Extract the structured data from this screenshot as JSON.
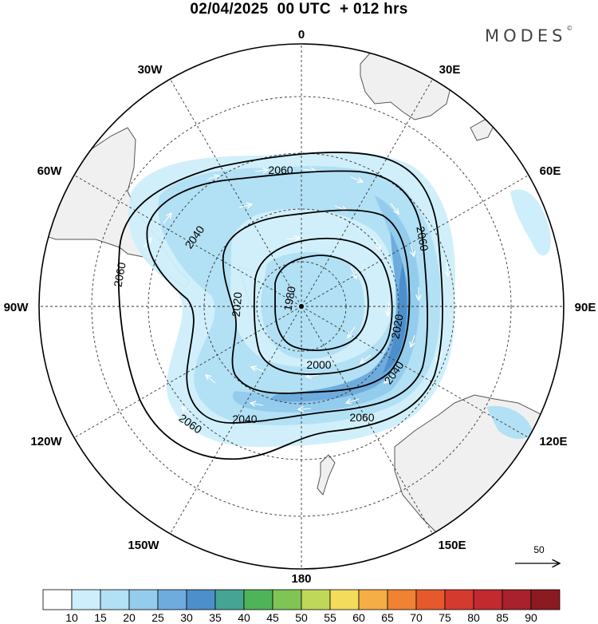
{
  "header": {
    "title": "02/04/2025  00 UTC  + 012 hrs",
    "brand": "MODES"
  },
  "map": {
    "projection": "south-polar-stereographic",
    "longitude_labels": [
      "0",
      "30E",
      "60E",
      "90E",
      "120E",
      "150E",
      "180",
      "150W",
      "120W",
      "90W",
      "60W",
      "30W"
    ],
    "contour_labels": [
      "2060",
      "2040",
      "2060",
      "2060",
      "2020",
      "1980",
      "2060",
      "2020",
      "2000",
      "2040",
      "2060",
      "2040",
      "2060",
      "2040"
    ],
    "wind_reference": {
      "label": "50"
    },
    "colors": {
      "land": "#f0f0f0",
      "coast": "#555555",
      "contour": "#000000",
      "grid": "#333333"
    }
  },
  "colorbar": {
    "ticks": [
      "10",
      "15",
      "20",
      "25",
      "30",
      "35",
      "40",
      "45",
      "50",
      "55",
      "60",
      "65",
      "70",
      "75",
      "80",
      "85",
      "90"
    ],
    "colors": [
      "#ffffff",
      "#cdeefa",
      "#b2e0f4",
      "#93cced",
      "#6eacde",
      "#4d8fcb",
      "#46a494",
      "#4fb35a",
      "#7fc555",
      "#c0d85a",
      "#f3dc5b",
      "#f5ad45",
      "#ef8233",
      "#e5592c",
      "#d53a2f",
      "#c22a2f",
      "#a8212c",
      "#8c1a22"
    ]
  }
}
